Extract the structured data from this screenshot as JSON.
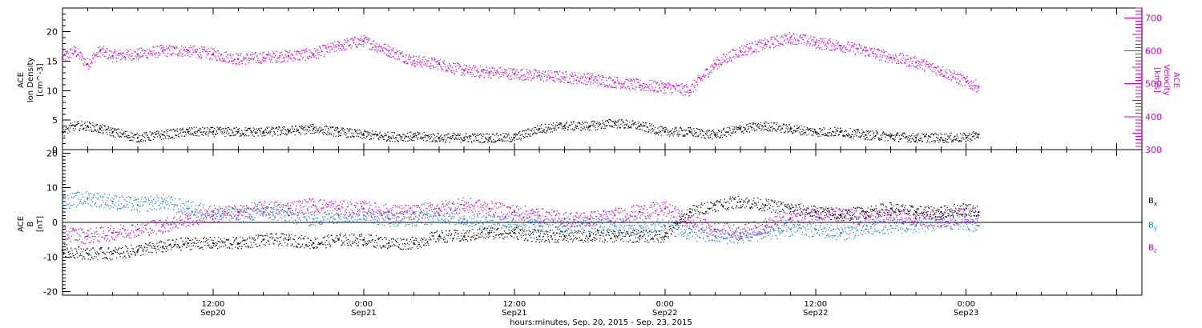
{
  "colors": {
    "density": "#000000",
    "velocity": "#d100d1",
    "bx": "#000000",
    "by": "#1a7fd4",
    "bz": "#c400c4"
  },
  "xaxis": {
    "title": "hours:minutes, Sep. 20, 2015 - Sep. 23, 2015",
    "range_hours": [
      0,
      86
    ],
    "ticks": [
      {
        "hour": 12,
        "time": "12:00",
        "date": "Sep20"
      },
      {
        "hour": 24,
        "time": "0:00",
        "date": "Sep21"
      },
      {
        "hour": 36,
        "time": "12:00",
        "date": "Sep21"
      },
      {
        "hour": 48,
        "time": "0:00",
        "date": "Sep22"
      },
      {
        "hour": 60,
        "time": "12:00",
        "date": "Sep22"
      },
      {
        "hour": 72,
        "time": "0:00",
        "date": "Sep23"
      }
    ]
  },
  "chart_data": [
    {
      "type": "scatter",
      "panel": "top",
      "ylabel_left": [
        "ACE",
        "Ion Density",
        "[cm^-3]"
      ],
      "ylabel_right": [
        "ACE",
        "Velocity",
        "[km/s]"
      ],
      "ylim_left": [
        0,
        24
      ],
      "ylim_right": [
        300,
        730
      ],
      "yticks_left": [
        "0",
        "5",
        "10",
        "15",
        "20"
      ],
      "yticks_right": [
        "300",
        "400",
        "500",
        "600",
        "700"
      ],
      "series": [
        {
          "axis": "left",
          "x_hours": [
            0,
            1,
            2,
            3,
            4,
            6,
            8,
            10,
            12,
            14,
            16,
            18,
            20,
            22,
            24,
            26,
            28,
            30,
            32,
            34,
            36,
            38,
            40,
            42,
            44,
            46,
            48,
            50,
            52,
            54,
            56,
            58,
            60,
            62,
            64,
            66,
            68,
            70,
            72,
            73
          ],
          "values": [
            3,
            4,
            4,
            3.5,
            3,
            2,
            2.5,
            3,
            3,
            3,
            3,
            3.2,
            3.5,
            3,
            2.5,
            2.2,
            2.2,
            2,
            2,
            2,
            2,
            3.5,
            4,
            4,
            4.5,
            4,
            3,
            3,
            2.5,
            3.5,
            4,
            3.5,
            3,
            3,
            2.5,
            2.2,
            2,
            2,
            2,
            2.6
          ]
        },
        {
          "axis": "right",
          "x_hours": [
            0,
            1,
            2,
            3,
            4,
            6,
            8,
            10,
            12,
            14,
            16,
            18,
            20,
            22,
            24,
            26,
            28,
            30,
            32,
            34,
            36,
            38,
            40,
            42,
            44,
            46,
            48,
            50,
            52,
            54,
            56,
            58,
            60,
            62,
            64,
            66,
            68,
            70,
            72,
            73
          ],
          "values": [
            580,
            600,
            560,
            600,
            585,
            590,
            600,
            600,
            590,
            575,
            580,
            585,
            590,
            615,
            630,
            600,
            570,
            560,
            540,
            535,
            530,
            525,
            520,
            515,
            505,
            495,
            490,
            480,
            560,
            600,
            620,
            640,
            625,
            615,
            600,
            580,
            565,
            540,
            505,
            490
          ]
        }
      ]
    },
    {
      "type": "scatter",
      "panel": "bottom",
      "ylabel_left": [
        "ACE",
        "B",
        "[nT]"
      ],
      "ylim": [
        -21,
        21
      ],
      "yticks": [
        "-20",
        "-10",
        "0",
        "10",
        "20"
      ],
      "legend": [
        "Bx",
        "By",
        "Bz"
      ],
      "series": [
        {
          "name": "Bx",
          "x_hours": [
            0,
            2,
            4,
            6,
            8,
            10,
            12,
            14,
            16,
            18,
            20,
            22,
            24,
            26,
            28,
            30,
            32,
            34,
            36,
            38,
            40,
            42,
            44,
            46,
            48,
            50,
            52,
            54,
            56,
            58,
            60,
            62,
            64,
            66,
            68,
            70,
            72,
            73
          ],
          "values": [
            -8,
            -9,
            -9,
            -8,
            -7,
            -6,
            -6,
            -6,
            -5,
            -5,
            -6,
            -5,
            -5,
            -6,
            -6,
            -4,
            -4,
            -3,
            -3,
            -4,
            -4,
            -4,
            -4,
            -4,
            -4,
            3,
            5,
            6,
            5,
            4,
            3,
            2,
            3,
            4,
            3,
            3,
            4,
            3
          ]
        },
        {
          "name": "By",
          "x_hours": [
            0,
            2,
            4,
            6,
            8,
            10,
            12,
            14,
            16,
            18,
            20,
            22,
            24,
            26,
            28,
            30,
            32,
            34,
            36,
            38,
            40,
            42,
            44,
            46,
            48,
            50,
            52,
            54,
            56,
            58,
            60,
            62,
            64,
            66,
            68,
            70,
            72,
            73
          ],
          "values": [
            6,
            7,
            6,
            5,
            6,
            4,
            3,
            2,
            3,
            2,
            1,
            2,
            2,
            1,
            1,
            2,
            1,
            0,
            0,
            -1,
            -1,
            -1,
            -1,
            -1,
            -1,
            -3,
            -4,
            -4,
            -3,
            -2,
            -2,
            -3,
            -2,
            -1,
            -1,
            0,
            0,
            -1
          ]
        },
        {
          "name": "Bz",
          "x_hours": [
            0,
            2,
            4,
            6,
            8,
            10,
            12,
            14,
            16,
            18,
            20,
            22,
            24,
            26,
            28,
            30,
            32,
            34,
            36,
            38,
            40,
            42,
            44,
            46,
            48,
            50,
            52,
            54,
            56,
            58,
            60,
            62,
            64,
            66,
            68,
            70,
            72,
            73
          ],
          "values": [
            -3,
            -4,
            -3,
            -2,
            -1,
            1,
            2,
            3,
            4,
            4,
            5,
            4,
            4,
            3,
            3,
            4,
            5,
            4,
            3,
            2,
            1,
            1,
            2,
            3,
            4,
            0,
            -2,
            -3,
            -1,
            1,
            3,
            2,
            1,
            2,
            1,
            1,
            2,
            2
          ]
        }
      ]
    }
  ]
}
